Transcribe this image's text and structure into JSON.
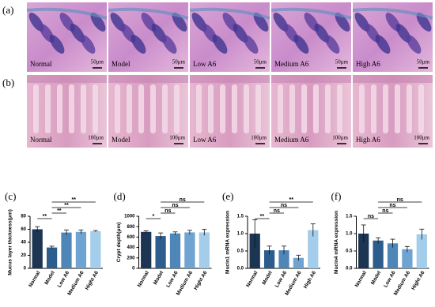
{
  "figure": {
    "row_a": {
      "label": "(a)",
      "images": [
        {
          "label": "Normal",
          "scale": "50μm"
        },
        {
          "label": "Model",
          "scale": "50μm"
        },
        {
          "label": "Low A6",
          "scale": "50μm"
        },
        {
          "label": "Medium A6",
          "scale": "50μm"
        },
        {
          "label": "High A6",
          "scale": "50μm"
        }
      ]
    },
    "row_b": {
      "label": "(b)",
      "images": [
        {
          "label": "Normal",
          "scale": "100μm"
        },
        {
          "label": "Model",
          "scale": "100μm"
        },
        {
          "label": "Low A6",
          "scale": "100μm"
        },
        {
          "label": "Medium A6",
          "scale": "100μm"
        },
        {
          "label": "High A6",
          "scale": "100μm"
        }
      ]
    }
  },
  "chart_data": [
    {
      "type": "bar",
      "panel_label": "(c)",
      "y_label": "Mucus layer thickness(μm)",
      "categories": [
        "Normal",
        "Model",
        "Low A6",
        "Medium A6",
        "Hight A6"
      ],
      "values": [
        60,
        32,
        55,
        56,
        57
      ],
      "errors": [
        4,
        2,
        4,
        3,
        1
      ],
      "colors": [
        "#1c3553",
        "#2c5d8c",
        "#4f86b8",
        "#6fa3d2",
        "#a3cdea"
      ],
      "ylim": [
        0,
        80
      ],
      "yticks": [
        0,
        20,
        40,
        60,
        80
      ],
      "significance": [
        {
          "pair": [
            "Normal",
            "Model"
          ],
          "label": "**"
        },
        {
          "pair": [
            "Model",
            "Low A6"
          ],
          "label": "**"
        },
        {
          "pair": [
            "Model",
            "Medium A6"
          ],
          "label": "**"
        },
        {
          "pair": [
            "Model",
            "Hight A6"
          ],
          "label": "**"
        }
      ]
    },
    {
      "type": "bar",
      "panel_label": "(d)",
      "y_label": "Crypt depth(μm)",
      "categories": [
        "Normal",
        "Model",
        "Low A6",
        "Medium A6",
        "Hight A6"
      ],
      "values": [
        700,
        620,
        670,
        690,
        690
      ],
      "errors": [
        20,
        60,
        30,
        40,
        60
      ],
      "colors": [
        "#1c3553",
        "#2c5d8c",
        "#4f86b8",
        "#6fa3d2",
        "#a3cdea"
      ],
      "ylim": [
        0,
        1000
      ],
      "yticks": [
        0,
        200,
        400,
        600,
        800,
        1000
      ],
      "significance": [
        {
          "pair": [
            "Normal",
            "Model"
          ],
          "label": "*"
        },
        {
          "pair": [
            "Model",
            "Low A6"
          ],
          "label": "ns"
        },
        {
          "pair": [
            "Model",
            "Medium A6"
          ],
          "label": "ns"
        },
        {
          "pair": [
            "Model",
            "Hight A6"
          ],
          "label": "ns"
        }
      ]
    },
    {
      "type": "bar",
      "panel_label": "(e)",
      "y_label": "Mucin1 mRNA expression",
      "categories": [
        "Normal",
        "Model",
        "Low A6",
        "Medium A6",
        "High A6"
      ],
      "values": [
        1.0,
        0.52,
        0.52,
        0.3,
        1.1
      ],
      "errors": [
        0.4,
        0.12,
        0.12,
        0.08,
        0.18
      ],
      "colors": [
        "#1c3553",
        "#2c5d8c",
        "#4f86b8",
        "#6fa3d2",
        "#a3cdea"
      ],
      "ylim": [
        0,
        1.5
      ],
      "yticks": [
        {
          "value": 0,
          "label": "0.0"
        },
        0.5,
        {
          "value": 1,
          "label": "1.0"
        },
        1.5
      ],
      "significance": [
        {
          "pair": [
            "Normal",
            "Model"
          ],
          "label": "**"
        },
        {
          "pair": [
            "Model",
            "Low A6"
          ],
          "label": "ns"
        },
        {
          "pair": [
            "Model",
            "Medium A6"
          ],
          "label": "ns"
        },
        {
          "pair": [
            "Model",
            "High A6"
          ],
          "label": "**"
        }
      ]
    },
    {
      "type": "bar",
      "panel_label": "(f)",
      "y_label": "Mucin4 mRNA expression",
      "categories": [
        "Normal",
        "Model",
        "Low A6",
        "Medium A6",
        "Hight A6"
      ],
      "values": [
        1.0,
        0.8,
        0.72,
        0.55,
        0.98
      ],
      "errors": [
        0.25,
        0.08,
        0.12,
        0.08,
        0.15
      ],
      "colors": [
        "#1c3553",
        "#2c5d8c",
        "#4f86b8",
        "#6fa3d2",
        "#a3cdea"
      ],
      "ylim": [
        0,
        1.5
      ],
      "yticks": [
        {
          "value": 0,
          "label": "0.0"
        },
        0.5,
        {
          "value": 1,
          "label": "1.0"
        },
        1.5
      ],
      "significance": [
        {
          "pair": [
            "Normal",
            "Model"
          ],
          "label": "ns"
        },
        {
          "pair": [
            "Model",
            "Low A6"
          ],
          "label": "ns"
        },
        {
          "pair": [
            "Model",
            "Medium A6"
          ],
          "label": "ns"
        },
        {
          "pair": [
            "Model",
            "Hight A6"
          ],
          "label": "ns"
        }
      ]
    }
  ]
}
